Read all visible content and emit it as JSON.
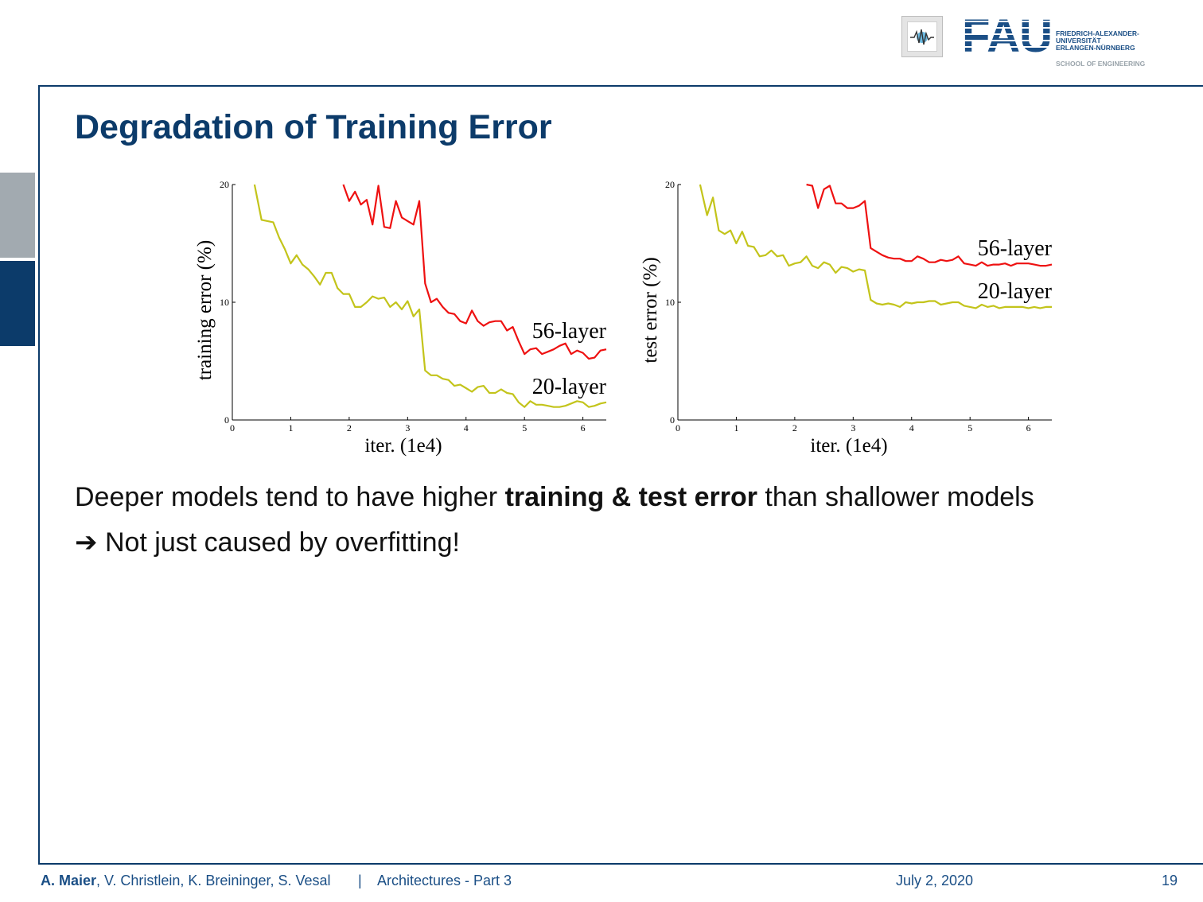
{
  "header": {
    "logo_main": "FAU",
    "logo_lines": [
      "FRIEDRICH-ALEXANDER-",
      "UNIVERSITÄT",
      "ERLANGEN-NÜRNBERG"
    ],
    "school": "SCHOOL OF ENGINEERING"
  },
  "slide": {
    "title": "Degradation of Training Error",
    "body_pre": "Deeper models tend to have higher ",
    "body_bold": "training & test error",
    "body_post": " than shallower models",
    "arrow": "➔",
    "arrow_text": " Not just caused by overfitting!"
  },
  "footer": {
    "author_bold": "A. Maier",
    "authors_rest": ", V. Christlein, K. Breininger, S. Vesal",
    "separator": "|",
    "lecture": "Architectures - Part 3",
    "date": "July 2, 2020",
    "page": "19"
  },
  "chart_data": [
    {
      "type": "line",
      "xlabel": "iter. (1e4)",
      "ylabel": "training error (%)",
      "xlim": [
        0,
        6.4
      ],
      "ylim": [
        0,
        20
      ],
      "xticks": [
        "0",
        "1",
        "2",
        "3",
        "4",
        "5",
        "6"
      ],
      "yticks": [
        "0",
        "10",
        "20"
      ],
      "colors": {
        "56-layer": "#ee1111",
        "20-layer": "#c3c41b"
      },
      "series": [
        {
          "name": "56-layer",
          "x": [
            1.9,
            2.0,
            2.1,
            2.2,
            2.3,
            2.4,
            2.5,
            2.6,
            2.7,
            2.8,
            2.9,
            3.0,
            3.1,
            3.2,
            3.3,
            3.4,
            3.5,
            3.6,
            3.7,
            3.8,
            3.9,
            4.0,
            4.1,
            4.2,
            4.3,
            4.4,
            4.5,
            4.6,
            4.7,
            4.8,
            4.9,
            5.0,
            5.1,
            5.2,
            5.3,
            5.4,
            5.5,
            5.6,
            5.7,
            5.8,
            5.9,
            6.0,
            6.1,
            6.2,
            6.3,
            6.4
          ],
          "y": [
            20.0,
            18.6,
            19.4,
            18.3,
            18.7,
            16.6,
            19.9,
            16.4,
            16.3,
            18.6,
            17.2,
            16.9,
            16.6,
            18.6,
            11.6,
            10.0,
            10.3,
            9.6,
            9.1,
            9.0,
            8.4,
            8.2,
            9.3,
            8.4,
            8.0,
            8.3,
            8.4,
            8.4,
            7.6,
            7.9,
            6.7,
            5.6,
            6.0,
            6.1,
            5.6,
            5.8,
            6.0,
            6.3,
            6.5,
            5.6,
            5.9,
            5.7,
            5.2,
            5.3,
            5.9,
            6.0
          ]
        },
        {
          "name": "20-layer",
          "x": [
            0.38,
            0.5,
            0.6,
            0.7,
            0.8,
            0.9,
            1.0,
            1.1,
            1.2,
            1.3,
            1.4,
            1.5,
            1.6,
            1.7,
            1.8,
            1.9,
            2.0,
            2.1,
            2.2,
            2.3,
            2.4,
            2.5,
            2.6,
            2.7,
            2.8,
            2.9,
            3.0,
            3.1,
            3.2,
            3.3,
            3.4,
            3.5,
            3.6,
            3.7,
            3.8,
            3.9,
            4.0,
            4.1,
            4.2,
            4.3,
            4.4,
            4.5,
            4.6,
            4.7,
            4.8,
            4.9,
            5.0,
            5.1,
            5.2,
            5.3,
            5.4,
            5.5,
            5.6,
            5.7,
            5.8,
            5.9,
            6.0,
            6.1,
            6.2,
            6.3,
            6.4
          ],
          "y": [
            20.0,
            17.0,
            16.9,
            16.8,
            15.5,
            14.5,
            13.3,
            14.0,
            13.2,
            12.8,
            12.2,
            11.5,
            12.5,
            12.5,
            11.2,
            10.7,
            10.7,
            9.6,
            9.6,
            10.0,
            10.5,
            10.3,
            10.4,
            9.6,
            10.0,
            9.4,
            10.1,
            8.8,
            9.4,
            4.2,
            3.8,
            3.8,
            3.5,
            3.4,
            2.9,
            3.0,
            2.7,
            2.4,
            2.8,
            2.9,
            2.3,
            2.3,
            2.6,
            2.3,
            2.2,
            1.5,
            1.1,
            1.6,
            1.3,
            1.3,
            1.2,
            1.1,
            1.1,
            1.2,
            1.4,
            1.6,
            1.5,
            1.1,
            1.2,
            1.4,
            1.5
          ]
        }
      ]
    },
    {
      "type": "line",
      "xlabel": "iter. (1e4)",
      "ylabel": "test error (%)",
      "xlim": [
        0,
        6.4
      ],
      "ylim": [
        0,
        20
      ],
      "xticks": [
        "0",
        "1",
        "2",
        "3",
        "4",
        "5",
        "6"
      ],
      "yticks": [
        "0",
        "10",
        "20"
      ],
      "colors": {
        "56-layer": "#ee1111",
        "20-layer": "#c3c41b"
      },
      "series": [
        {
          "name": "56-layer",
          "x": [
            2.2,
            2.3,
            2.4,
            2.5,
            2.6,
            2.7,
            2.8,
            2.9,
            3.0,
            3.1,
            3.2,
            3.3,
            3.4,
            3.5,
            3.6,
            3.7,
            3.8,
            3.9,
            4.0,
            4.1,
            4.2,
            4.3,
            4.4,
            4.5,
            4.6,
            4.7,
            4.8,
            4.9,
            5.0,
            5.1,
            5.2,
            5.3,
            5.4,
            5.5,
            5.6,
            5.7,
            5.8,
            5.9,
            6.0,
            6.1,
            6.2,
            6.3,
            6.4
          ],
          "y": [
            20.0,
            19.9,
            18.0,
            19.6,
            19.9,
            18.4,
            18.4,
            18.0,
            18.0,
            18.2,
            18.6,
            14.6,
            14.3,
            14.0,
            13.8,
            13.7,
            13.7,
            13.5,
            13.5,
            13.9,
            13.7,
            13.4,
            13.4,
            13.6,
            13.5,
            13.6,
            13.9,
            13.3,
            13.2,
            13.1,
            13.4,
            13.1,
            13.2,
            13.2,
            13.3,
            13.1,
            13.3,
            13.3,
            13.3,
            13.2,
            13.1,
            13.1,
            13.2
          ]
        },
        {
          "name": "20-layer",
          "x": [
            0.38,
            0.5,
            0.6,
            0.7,
            0.8,
            0.9,
            1.0,
            1.1,
            1.2,
            1.3,
            1.4,
            1.5,
            1.6,
            1.7,
            1.8,
            1.9,
            2.0,
            2.1,
            2.2,
            2.3,
            2.4,
            2.5,
            2.6,
            2.7,
            2.8,
            2.9,
            3.0,
            3.1,
            3.2,
            3.3,
            3.4,
            3.5,
            3.6,
            3.7,
            3.8,
            3.9,
            4.0,
            4.1,
            4.2,
            4.3,
            4.4,
            4.5,
            4.6,
            4.7,
            4.8,
            4.9,
            5.0,
            5.1,
            5.2,
            5.3,
            5.4,
            5.5,
            5.6,
            5.7,
            5.8,
            5.9,
            6.0,
            6.1,
            6.2,
            6.3,
            6.4
          ],
          "y": [
            20.0,
            17.4,
            18.9,
            16.1,
            15.8,
            16.1,
            15.0,
            16.0,
            14.8,
            14.7,
            13.9,
            14.0,
            14.4,
            13.9,
            14.0,
            13.1,
            13.3,
            13.4,
            13.9,
            13.1,
            12.9,
            13.4,
            13.2,
            12.5,
            13.0,
            12.9,
            12.6,
            12.8,
            12.7,
            10.2,
            9.9,
            9.8,
            9.9,
            9.8,
            9.6,
            10.0,
            9.9,
            10.0,
            10.0,
            10.1,
            10.1,
            9.8,
            9.9,
            10.0,
            10.0,
            9.7,
            9.6,
            9.5,
            9.8,
            9.6,
            9.7,
            9.5,
            9.6,
            9.6,
            9.6,
            9.6,
            9.5,
            9.6,
            9.5,
            9.6,
            9.6
          ]
        }
      ]
    }
  ]
}
